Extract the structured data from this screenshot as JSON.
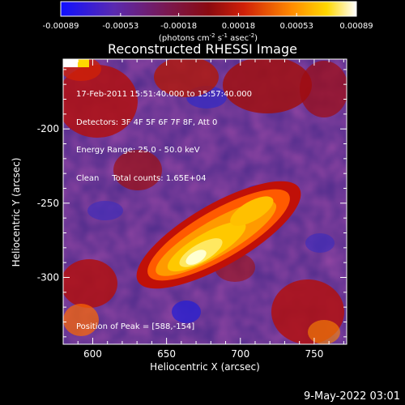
{
  "colorbar": {
    "tick_labels": [
      "-0.00089",
      "-0.00053",
      "-0.00018",
      "0.00018",
      "0.00053",
      "0.00089"
    ],
    "unit_prefix": "(photons cm",
    "unit_exp1": "-2",
    "unit_mid1": " s",
    "unit_exp2": "-1",
    "unit_mid2": " asec",
    "unit_exp3": "-2",
    "unit_suffix": ")",
    "colors": [
      "#1010ff",
      "#6a2aa8",
      "#7a1050",
      "#c01008",
      "#ff7a00",
      "#ffd000",
      "#ffffff"
    ]
  },
  "plot": {
    "title": "Reconstructed RHESSI Image",
    "xlabel": "Heliocentric X (arcsec)",
    "ylabel": "Heliocentric Y (arcsec)",
    "x_ticks": [
      "600",
      "650",
      "700",
      "750"
    ],
    "y_ticks": [
      "-200",
      "-250",
      "-300"
    ]
  },
  "annotations": {
    "line1": "17-Feb-2011 15:51:40.000 to 15:57:40.000",
    "line2": "Detectors: 3F 4F 5F 6F 7F 8F, Att 0",
    "line3": "Energy Range: 25.0 - 50.0 keV",
    "line4": "Clean     Total counts: 1.65E+04",
    "peak": "Position of Peak = [588,-154]"
  },
  "footer": {
    "timestamp": "9-May-2022 03:01"
  },
  "chart_data": {
    "type": "heatmap",
    "title": "Reconstructed RHESSI Image",
    "xlabel": "Heliocentric X (arcsec)",
    "ylabel": "Heliocentric Y (arcsec)",
    "xlim": [
      580,
      772
    ],
    "ylim": [
      -345,
      -153
    ],
    "x_ticks": [
      600,
      650,
      700,
      750
    ],
    "y_ticks": [
      -200,
      -250,
      -300
    ],
    "colorbar_range": [
      -0.00089,
      0.00089
    ],
    "colorbar_ticks": [
      -0.00089,
      -0.00053,
      -0.00018,
      0.00018,
      0.00053,
      0.00089
    ],
    "peak_position": [
      588,
      -154
    ]
  }
}
